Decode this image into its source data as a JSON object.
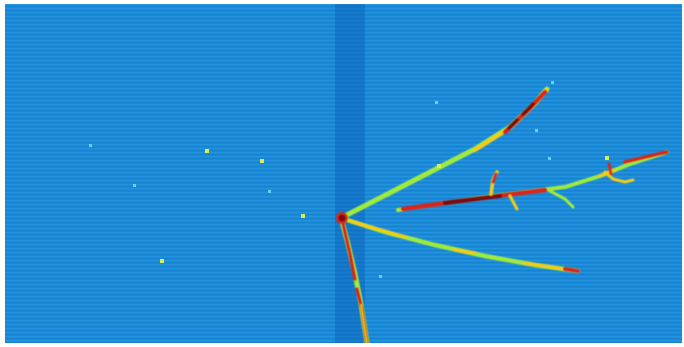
{
  "image": {
    "kind": "particle-detector-event-display",
    "colors": {
      "background": "#1a8ad8",
      "background_dark": "#0f74c8",
      "dead_column": "#0a5fb4",
      "track_low": "#9eea3e",
      "track_mid": "#f2cc19",
      "track_high": "#d8261b",
      "track_peak": "#7a0f0a",
      "hit_cyan": "#62d6ef",
      "hit_yellow": "#d8ee52"
    }
  }
}
